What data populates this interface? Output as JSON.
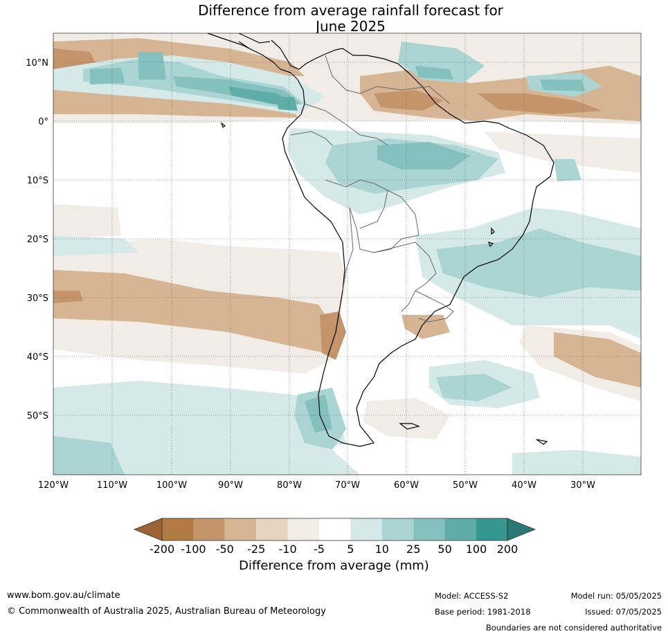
{
  "title_line1": "Difference from average rainfall forecast for",
  "title_line2": "June 2025",
  "lat_labels": [
    "10°N",
    "0°",
    "10°S",
    "20°S",
    "30°S",
    "40°S",
    "50°S"
  ],
  "lon_labels": [
    "120°W",
    "110°W",
    "100°W",
    "90°W",
    "80°W",
    "70°W",
    "60°W",
    "50°W",
    "40°W",
    "30°W"
  ],
  "colorbar": {
    "title": "Difference from average (mm)",
    "tick_labels": [
      "-200",
      "-100",
      "-50",
      "-25",
      "-10",
      "-5",
      "5",
      "10",
      "25",
      "50",
      "100",
      "200"
    ],
    "colors": [
      "#9a6434",
      "#b07a42",
      "#c4956a",
      "#d6b594",
      "#e6d3c0",
      "#f2ece6",
      "#ffffff",
      "#d5eae8",
      "#aad5d3",
      "#84c1be",
      "#5eada9",
      "#35978f",
      "#2a7873"
    ]
  },
  "footer": {
    "website": "www.bom.gov.au/climate",
    "copyright": "© Commonwealth of Australia 2025, Australian Bureau of Meteorology",
    "model": "Model: ACCESS-S2",
    "base_period": "Base period: 1981-2018",
    "model_run": "Model run: 05/05/2025",
    "issued": "Issued: 07/05/2025",
    "disclaimer": "Boundaries are not considered authoritative"
  }
}
